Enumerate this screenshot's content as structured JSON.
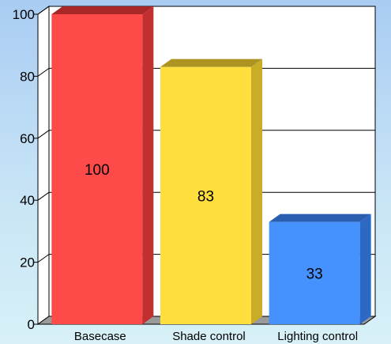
{
  "chart_data": {
    "type": "bar",
    "style": "3d",
    "title": "",
    "xlabel": "",
    "ylabel": "",
    "categories": [
      "Basecase",
      "Shade control",
      "Lighting control"
    ],
    "values": [
      100,
      83,
      33
    ],
    "data_labels": [
      "100",
      "83",
      "33"
    ],
    "ylim": [
      0,
      100
    ],
    "yticks": [
      0,
      20,
      40,
      60,
      80,
      100
    ],
    "ytick_labels": [
      "0",
      "20",
      "40",
      "60",
      "80",
      "100"
    ],
    "grid": true,
    "legend": "none",
    "bar_colors": [
      {
        "front": "#ff4a4a",
        "side": "#c22f2f",
        "top": "#a82828"
      },
      {
        "front": "#ffdf3d",
        "side": "#c9ad27",
        "top": "#ad9422"
      },
      {
        "front": "#4592ff",
        "side": "#2c69c4",
        "top": "#2a5fb0"
      }
    ],
    "colors": {
      "background_top": "#a9ccf3",
      "background_bottom": "#d8f1f8",
      "plot_area": "#ffffff",
      "gridline": "#000000",
      "floor": "#9a9a9a"
    }
  }
}
